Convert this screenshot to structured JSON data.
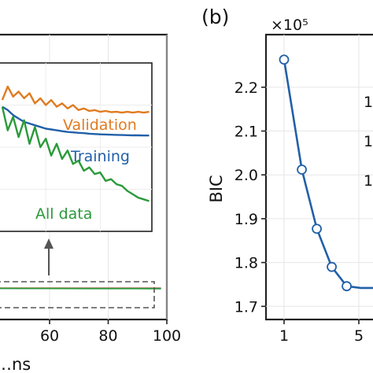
{
  "chart_data": [
    {
      "panel_label": "",
      "type": "line",
      "xlabel": "…ns",
      "ylabel": "",
      "xlim": [
        42,
        100
      ],
      "x_ticks": [
        "60",
        "80",
        "100"
      ],
      "grid": true,
      "inset": {
        "x": [
          44,
          46,
          48,
          50,
          52,
          54,
          56,
          58,
          60,
          62,
          64,
          66,
          68,
          70,
          72,
          74,
          76,
          78,
          80,
          82,
          84,
          86,
          88,
          90,
          92,
          94,
          96,
          98
        ],
        "ylim": [
          0,
          1
        ],
        "series": [
          {
            "name": "Validation",
            "color": "#e07b20",
            "values": [
              0.78,
              0.86,
              0.8,
              0.83,
              0.79,
              0.82,
              0.76,
              0.79,
              0.75,
              0.78,
              0.74,
              0.76,
              0.73,
              0.75,
              0.72,
              0.73,
              0.715,
              0.72,
              0.71,
              0.715,
              0.708,
              0.71,
              0.705,
              0.71,
              0.705,
              0.71,
              0.705,
              0.71
            ]
          },
          {
            "name": "Training",
            "color": "#2160a8",
            "values": [
              0.74,
              0.72,
              0.69,
              0.67,
              0.65,
              0.64,
              0.63,
              0.62,
              0.61,
              0.605,
              0.6,
              0.595,
              0.59,
              0.588,
              0.585,
              0.583,
              0.58,
              0.578,
              0.576,
              0.575,
              0.574,
              0.573,
              0.572,
              0.571,
              0.57,
              0.57,
              0.569,
              0.569
            ]
          },
          {
            "name": "All data",
            "color": "#2a9a3a",
            "values": [
              0.74,
              0.6,
              0.68,
              0.56,
              0.66,
              0.52,
              0.62,
              0.5,
              0.55,
              0.45,
              0.52,
              0.43,
              0.48,
              0.4,
              0.42,
              0.36,
              0.38,
              0.34,
              0.35,
              0.3,
              0.31,
              0.28,
              0.27,
              0.24,
              0.22,
              0.2,
              0.19,
              0.18
            ]
          }
        ]
      },
      "main": {
        "series": [
          {
            "name": "Validation",
            "color": "#e07b20",
            "values": [
              0.86,
              0.855,
              0.855,
              0.854,
              0.854,
              0.853,
              0.853,
              0.853
            ]
          },
          {
            "name": "Training",
            "color": "#2160a8",
            "values": [
              0.84,
              0.835,
              0.833,
              0.832,
              0.831,
              0.831,
              0.83,
              0.83
            ]
          },
          {
            "name": "All data",
            "color": "#2a9a3a",
            "values": [
              0.84,
              0.83,
              0.826,
              0.822,
              0.82,
              0.818,
              0.816,
              0.815
            ]
          }
        ],
        "x": [
          42,
          50,
          58,
          66,
          74,
          82,
          90,
          98
        ]
      }
    },
    {
      "panel_label": "(b)",
      "type": "line",
      "ylabel": "BIC",
      "y_scale_label": "×10⁵",
      "x_ticks": [
        "1",
        "5"
      ],
      "y_ticks": [
        "2.2",
        "2.1",
        "2.0",
        "1.9",
        "1.8",
        "1.7"
      ],
      "ylim": [
        1.67,
        2.32
      ],
      "xlim": [
        0,
        6.1
      ],
      "grid": true,
      "series": [
        {
          "name": "",
          "color": "#2160a8",
          "x": [
            1,
            2,
            3,
            4,
            5,
            6
          ],
          "values": [
            2.263,
            2.012,
            1.877,
            1.79,
            1.746,
            1.742
          ]
        }
      ],
      "clipped_labels": [
        "1",
        "1",
        "1"
      ]
    }
  ]
}
